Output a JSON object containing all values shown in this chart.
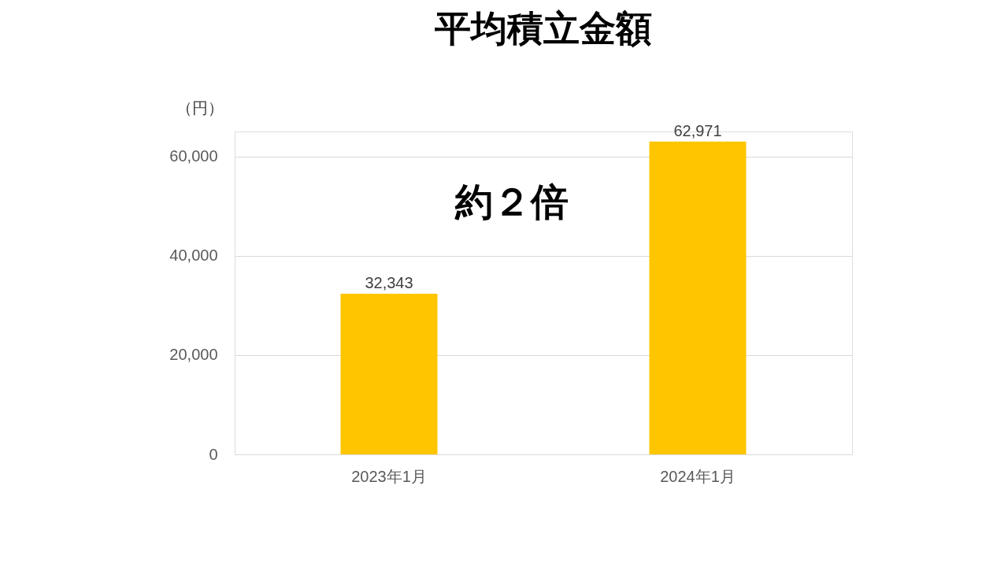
{
  "chart_data": {
    "type": "bar",
    "title": "平均積立金額",
    "ylabel": "（円）",
    "categories": [
      "2023年1月",
      "2024年1月"
    ],
    "values": [
      32343,
      62971
    ],
    "value_labels": [
      "32,343",
      "62,971"
    ],
    "color": "#ffc600",
    "ylim": [
      0,
      65000
    ],
    "yticks": [
      0,
      {
        "value": 20000,
        "label": "20,000"
      },
      {
        "value": 40000,
        "label": "40,000"
      },
      {
        "value": 60000,
        "label": "60,000"
      }
    ],
    "grid": "y",
    "annotations": [
      "約２倍"
    ]
  }
}
